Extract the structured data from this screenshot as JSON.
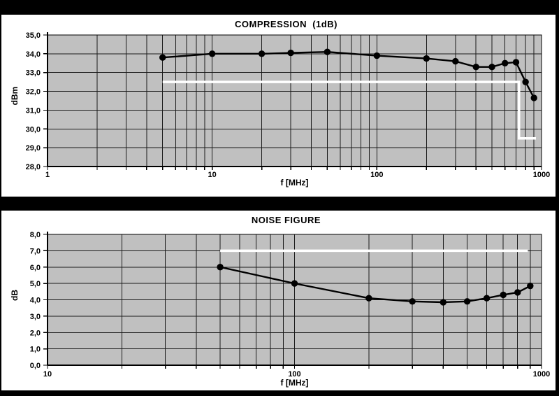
{
  "colors": {
    "page_bg": "#000000",
    "panel_bg": "#ffffff",
    "plot_bg": "#c0c0c0",
    "grid": "#1a1a1a",
    "axis": "#000000",
    "series": "#000000",
    "limit_line": "#ffffff",
    "text": "#000000"
  },
  "chart_data": [
    {
      "type": "line",
      "title": "COMPRESSION  (1dB)",
      "xlabel": "f [MHz]",
      "ylabel": "dBm",
      "x_scale": "log",
      "xlim": [
        1,
        1000
      ],
      "ylim": [
        28.0,
        35.0
      ],
      "ytick_interval": 1.0,
      "ytick_labels": [
        "35,0",
        "34,0",
        "33,0",
        "32,0",
        "31,0",
        "30,0",
        "29,0",
        "28,0"
      ],
      "xticks": [
        {
          "value": 1,
          "label": "1"
        },
        {
          "value": 10,
          "label": "10"
        },
        {
          "value": 100,
          "label": "100"
        },
        {
          "value": 1000,
          "label": "1000"
        }
      ],
      "grid": "log-minor-on",
      "legend": "none",
      "series": [
        {
          "name": "compression-1dB",
          "marker": "circle",
          "x": [
            5,
            10,
            20,
            30,
            50,
            100,
            200,
            300,
            400,
            500,
            600,
            700,
            800,
            900
          ],
          "y": [
            33.8,
            34.0,
            34.0,
            34.05,
            34.1,
            33.9,
            33.75,
            33.6,
            33.3,
            33.3,
            33.5,
            33.55,
            32.5,
            31.65
          ]
        }
      ],
      "limit_line": {
        "name": "spec-limit-line",
        "points": [
          [
            5,
            32.5
          ],
          [
            730,
            32.5
          ],
          [
            730,
            29.5
          ],
          [
            925,
            29.5
          ]
        ]
      }
    },
    {
      "type": "line",
      "title": "NOISE FIGURE",
      "xlabel": "f [MHz]",
      "ylabel": "dB",
      "x_scale": "log",
      "xlim": [
        10,
        1000
      ],
      "ylim": [
        0.0,
        8.0
      ],
      "ytick_interval": 1.0,
      "ytick_labels": [
        "8,0",
        "7,0",
        "6,0",
        "5,0",
        "4,0",
        "3,0",
        "2,0",
        "1,0",
        "0,0"
      ],
      "xticks": [
        {
          "value": 10,
          "label": "10"
        },
        {
          "value": 100,
          "label": "100"
        },
        {
          "value": 1000,
          "label": "1000"
        }
      ],
      "grid": "log-minor-on",
      "legend": "none",
      "series": [
        {
          "name": "noise-figure",
          "marker": "circle",
          "x": [
            50,
            100,
            200,
            300,
            400,
            500,
            600,
            700,
            800,
            900
          ],
          "y": [
            6.0,
            5.0,
            4.1,
            3.9,
            3.85,
            3.9,
            4.1,
            4.3,
            4.45,
            4.85
          ]
        }
      ],
      "limit_line": {
        "name": "spec-limit-line",
        "points": [
          [
            50,
            7.0
          ],
          [
            880,
            7.0
          ]
        ]
      }
    }
  ]
}
